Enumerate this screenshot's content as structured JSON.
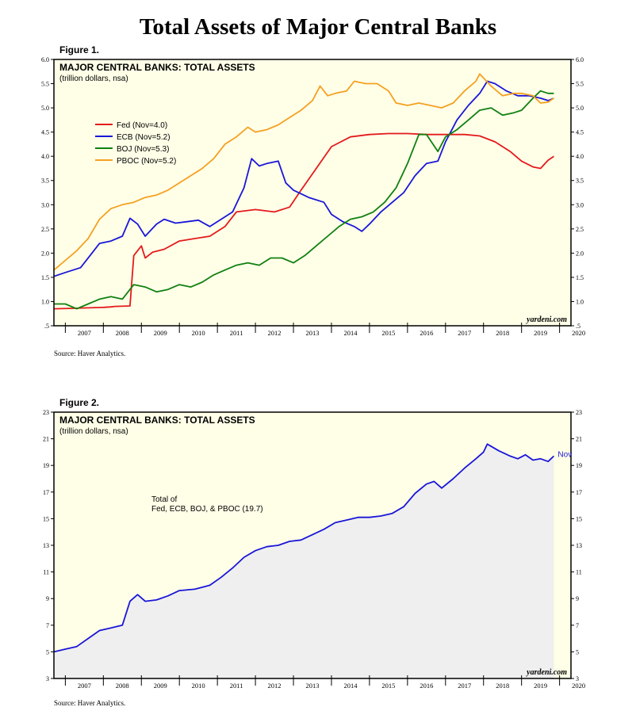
{
  "page_title": "Total Assets of Major Central Banks",
  "colors": {
    "panel_bg": "#ffffe8",
    "fed": "#e41a1c",
    "ecb": "#1a16d8",
    "boj": "#108010",
    "pboc": "#f5a020",
    "total": "#1a16d8",
    "total_fill": "#efefef"
  },
  "chart_data": [
    {
      "figure_label": "Figure 1.",
      "type": "line",
      "title": "MAJOR CENTRAL BANKS: TOTAL ASSETS",
      "subtitle": "(trillion dollars, nsa)",
      "source": "Source: Haver Analytics.",
      "watermark": "yardeni.com",
      "xlim": [
        2006.7,
        2020.3
      ],
      "ylim": [
        0.5,
        6.0
      ],
      "x_ticks": [
        2007,
        2008,
        2009,
        2010,
        2011,
        2012,
        2013,
        2014,
        2015,
        2016,
        2017,
        2018,
        2019,
        2020
      ],
      "y_ticks": [
        0.5,
        1.0,
        1.5,
        2.0,
        2.5,
        3.0,
        3.5,
        4.0,
        4.5,
        5.0,
        5.5,
        6.0
      ],
      "y_tick_labels": [
        ".5",
        "1.0",
        "1.5",
        "2.0",
        "2.5",
        "3.0",
        "3.5",
        "4.0",
        "4.5",
        "5.0",
        "5.5",
        "6.0"
      ],
      "grid": false,
      "legend_position": "upper-left",
      "series": [
        {
          "name": "Fed (Nov=4.0)",
          "color_key": "fed",
          "points": [
            [
              2006.7,
              0.85
            ],
            [
              2007.2,
              0.86
            ],
            [
              2007.6,
              0.87
            ],
            [
              2008.0,
              0.88
            ],
            [
              2008.2,
              0.89
            ],
            [
              2008.3,
              0.9
            ],
            [
              2008.7,
              0.91
            ],
            [
              2008.8,
              1.95
            ],
            [
              2009.0,
              2.15
            ],
            [
              2009.1,
              1.9
            ],
            [
              2009.3,
              2.02
            ],
            [
              2009.6,
              2.08
            ],
            [
              2010.0,
              2.25
            ],
            [
              2010.4,
              2.3
            ],
            [
              2010.8,
              2.35
            ],
            [
              2011.2,
              2.55
            ],
            [
              2011.5,
              2.85
            ],
            [
              2012.0,
              2.9
            ],
            [
              2012.5,
              2.85
            ],
            [
              2012.9,
              2.95
            ],
            [
              2013.2,
              3.3
            ],
            [
              2013.6,
              3.75
            ],
            [
              2014.0,
              4.2
            ],
            [
              2014.5,
              4.4
            ],
            [
              2015.0,
              4.45
            ],
            [
              2015.5,
              4.47
            ],
            [
              2016.0,
              4.47
            ],
            [
              2016.5,
              4.45
            ],
            [
              2017.0,
              4.45
            ],
            [
              2017.5,
              4.45
            ],
            [
              2017.9,
              4.42
            ],
            [
              2018.3,
              4.3
            ],
            [
              2018.7,
              4.1
            ],
            [
              2019.0,
              3.9
            ],
            [
              2019.3,
              3.78
            ],
            [
              2019.5,
              3.75
            ],
            [
              2019.7,
              3.92
            ],
            [
              2019.85,
              4.0
            ]
          ]
        },
        {
          "name": "ECB (Nov=5.2)",
          "color_key": "ecb",
          "points": [
            [
              2006.7,
              1.52
            ],
            [
              2007.0,
              1.6
            ],
            [
              2007.4,
              1.7
            ],
            [
              2007.7,
              2.0
            ],
            [
              2007.9,
              2.2
            ],
            [
              2008.2,
              2.25
            ],
            [
              2008.5,
              2.35
            ],
            [
              2008.7,
              2.72
            ],
            [
              2008.9,
              2.6
            ],
            [
              2009.1,
              2.35
            ],
            [
              2009.4,
              2.6
            ],
            [
              2009.6,
              2.7
            ],
            [
              2009.9,
              2.62
            ],
            [
              2010.2,
              2.65
            ],
            [
              2010.5,
              2.68
            ],
            [
              2010.8,
              2.55
            ],
            [
              2011.1,
              2.7
            ],
            [
              2011.4,
              2.85
            ],
            [
              2011.7,
              3.35
            ],
            [
              2011.9,
              3.95
            ],
            [
              2012.1,
              3.8
            ],
            [
              2012.3,
              3.85
            ],
            [
              2012.6,
              3.9
            ],
            [
              2012.8,
              3.45
            ],
            [
              2013.0,
              3.3
            ],
            [
              2013.4,
              3.15
            ],
            [
              2013.8,
              3.05
            ],
            [
              2014.0,
              2.8
            ],
            [
              2014.3,
              2.65
            ],
            [
              2014.6,
              2.55
            ],
            [
              2014.8,
              2.45
            ],
            [
              2015.0,
              2.6
            ],
            [
              2015.3,
              2.85
            ],
            [
              2015.6,
              3.05
            ],
            [
              2015.9,
              3.25
            ],
            [
              2016.2,
              3.6
            ],
            [
              2016.5,
              3.85
            ],
            [
              2016.8,
              3.9
            ],
            [
              2017.0,
              4.3
            ],
            [
              2017.3,
              4.75
            ],
            [
              2017.6,
              5.05
            ],
            [
              2017.9,
              5.3
            ],
            [
              2018.1,
              5.55
            ],
            [
              2018.3,
              5.5
            ],
            [
              2018.6,
              5.35
            ],
            [
              2018.9,
              5.25
            ],
            [
              2019.2,
              5.25
            ],
            [
              2019.5,
              5.2
            ],
            [
              2019.7,
              5.15
            ],
            [
              2019.85,
              5.2
            ]
          ]
        },
        {
          "name": "BOJ (Nov=5.3)",
          "color_key": "boj",
          "points": [
            [
              2006.7,
              0.95
            ],
            [
              2007.0,
              0.95
            ],
            [
              2007.3,
              0.85
            ],
            [
              2007.6,
              0.95
            ],
            [
              2007.9,
              1.05
            ],
            [
              2008.2,
              1.1
            ],
            [
              2008.5,
              1.05
            ],
            [
              2008.8,
              1.35
            ],
            [
              2009.1,
              1.3
            ],
            [
              2009.4,
              1.2
            ],
            [
              2009.7,
              1.25
            ],
            [
              2010.0,
              1.35
            ],
            [
              2010.3,
              1.3
            ],
            [
              2010.6,
              1.4
            ],
            [
              2010.9,
              1.55
            ],
            [
              2011.2,
              1.65
            ],
            [
              2011.5,
              1.75
            ],
            [
              2011.8,
              1.8
            ],
            [
              2012.1,
              1.75
            ],
            [
              2012.4,
              1.9
            ],
            [
              2012.7,
              1.9
            ],
            [
              2013.0,
              1.8
            ],
            [
              2013.3,
              1.95
            ],
            [
              2013.6,
              2.15
            ],
            [
              2013.9,
              2.35
            ],
            [
              2014.2,
              2.55
            ],
            [
              2014.5,
              2.7
            ],
            [
              2014.8,
              2.75
            ],
            [
              2015.1,
              2.85
            ],
            [
              2015.4,
              3.05
            ],
            [
              2015.7,
              3.35
            ],
            [
              2016.0,
              3.85
            ],
            [
              2016.3,
              4.45
            ],
            [
              2016.5,
              4.45
            ],
            [
              2016.8,
              4.1
            ],
            [
              2017.0,
              4.4
            ],
            [
              2017.3,
              4.55
            ],
            [
              2017.6,
              4.75
            ],
            [
              2017.9,
              4.95
            ],
            [
              2018.2,
              5.0
            ],
            [
              2018.5,
              4.85
            ],
            [
              2018.8,
              4.9
            ],
            [
              2019.0,
              4.95
            ],
            [
              2019.3,
              5.2
            ],
            [
              2019.5,
              5.35
            ],
            [
              2019.7,
              5.3
            ],
            [
              2019.85,
              5.3
            ]
          ]
        },
        {
          "name": "PBOC (Nov=5.2)",
          "color_key": "pboc",
          "points": [
            [
              2006.7,
              1.65
            ],
            [
              2007.0,
              1.85
            ],
            [
              2007.3,
              2.05
            ],
            [
              2007.6,
              2.3
            ],
            [
              2007.9,
              2.7
            ],
            [
              2008.2,
              2.92
            ],
            [
              2008.5,
              3.0
            ],
            [
              2008.8,
              3.05
            ],
            [
              2009.1,
              3.15
            ],
            [
              2009.4,
              3.2
            ],
            [
              2009.7,
              3.3
            ],
            [
              2010.0,
              3.45
            ],
            [
              2010.3,
              3.6
            ],
            [
              2010.6,
              3.75
            ],
            [
              2010.9,
              3.95
            ],
            [
              2011.2,
              4.25
            ],
            [
              2011.5,
              4.4
            ],
            [
              2011.8,
              4.6
            ],
            [
              2012.0,
              4.5
            ],
            [
              2012.3,
              4.55
            ],
            [
              2012.6,
              4.65
            ],
            [
              2012.9,
              4.8
            ],
            [
              2013.2,
              4.95
            ],
            [
              2013.5,
              5.15
            ],
            [
              2013.7,
              5.45
            ],
            [
              2013.9,
              5.25
            ],
            [
              2014.1,
              5.3
            ],
            [
              2014.4,
              5.35
            ],
            [
              2014.6,
              5.55
            ],
            [
              2014.9,
              5.5
            ],
            [
              2015.2,
              5.5
            ],
            [
              2015.5,
              5.35
            ],
            [
              2015.7,
              5.1
            ],
            [
              2016.0,
              5.05
            ],
            [
              2016.3,
              5.1
            ],
            [
              2016.6,
              5.05
            ],
            [
              2016.9,
              5.0
            ],
            [
              2017.2,
              5.1
            ],
            [
              2017.5,
              5.35
            ],
            [
              2017.8,
              5.55
            ],
            [
              2017.9,
              5.7
            ],
            [
              2018.2,
              5.45
            ],
            [
              2018.5,
              5.25
            ],
            [
              2018.8,
              5.3
            ],
            [
              2019.0,
              5.3
            ],
            [
              2019.3,
              5.25
            ],
            [
              2019.5,
              5.1
            ],
            [
              2019.7,
              5.12
            ],
            [
              2019.85,
              5.2
            ]
          ]
        }
      ]
    },
    {
      "figure_label": "Figure 2.",
      "type": "area",
      "title": "MAJOR CENTRAL BANKS: TOTAL ASSETS",
      "subtitle": "(trillion dollars, nsa)",
      "source": "Source: Haver Analytics.",
      "watermark": "yardeni.com",
      "xlim": [
        2006.7,
        2020.3
      ],
      "ylim": [
        3,
        23
      ],
      "x_ticks": [
        2007,
        2008,
        2009,
        2010,
        2011,
        2012,
        2013,
        2014,
        2015,
        2016,
        2017,
        2018,
        2019,
        2020
      ],
      "y_ticks": [
        3,
        5,
        7,
        9,
        11,
        13,
        15,
        17,
        19,
        21,
        23
      ],
      "y_tick_labels": [
        "3",
        "5",
        "7",
        "9",
        "11",
        "13",
        "15",
        "17",
        "19",
        "21",
        "23"
      ],
      "grid": false,
      "annotation": "Total of\nFed, ECB, BOJ, & PBOC (19.7)",
      "end_label": "Nov",
      "series": [
        {
          "name": "Total",
          "color_key": "total",
          "points": [
            [
              2006.7,
              5.0
            ],
            [
              2007.0,
              5.2
            ],
            [
              2007.3,
              5.4
            ],
            [
              2007.6,
              6.0
            ],
            [
              2007.9,
              6.6
            ],
            [
              2008.2,
              6.8
            ],
            [
              2008.5,
              7.0
            ],
            [
              2008.7,
              8.8
            ],
            [
              2008.9,
              9.3
            ],
            [
              2009.1,
              8.8
            ],
            [
              2009.4,
              8.9
            ],
            [
              2009.7,
              9.2
            ],
            [
              2010.0,
              9.6
            ],
            [
              2010.4,
              9.7
            ],
            [
              2010.8,
              10.0
            ],
            [
              2011.1,
              10.6
            ],
            [
              2011.4,
              11.3
            ],
            [
              2011.7,
              12.1
            ],
            [
              2012.0,
              12.6
            ],
            [
              2012.3,
              12.9
            ],
            [
              2012.6,
              13.0
            ],
            [
              2012.9,
              13.3
            ],
            [
              2013.2,
              13.4
            ],
            [
              2013.5,
              13.8
            ],
            [
              2013.8,
              14.2
            ],
            [
              2014.1,
              14.7
            ],
            [
              2014.4,
              14.9
            ],
            [
              2014.7,
              15.1
            ],
            [
              2015.0,
              15.1
            ],
            [
              2015.3,
              15.2
            ],
            [
              2015.6,
              15.4
            ],
            [
              2015.9,
              15.9
            ],
            [
              2016.2,
              16.9
            ],
            [
              2016.5,
              17.6
            ],
            [
              2016.7,
              17.8
            ],
            [
              2016.9,
              17.3
            ],
            [
              2017.2,
              18.0
            ],
            [
              2017.5,
              18.8
            ],
            [
              2017.8,
              19.5
            ],
            [
              2018.0,
              20.0
            ],
            [
              2018.1,
              20.6
            ],
            [
              2018.4,
              20.1
            ],
            [
              2018.7,
              19.7
            ],
            [
              2018.9,
              19.5
            ],
            [
              2019.1,
              19.8
            ],
            [
              2019.3,
              19.4
            ],
            [
              2019.5,
              19.5
            ],
            [
              2019.7,
              19.3
            ],
            [
              2019.85,
              19.7
            ]
          ]
        }
      ]
    }
  ]
}
